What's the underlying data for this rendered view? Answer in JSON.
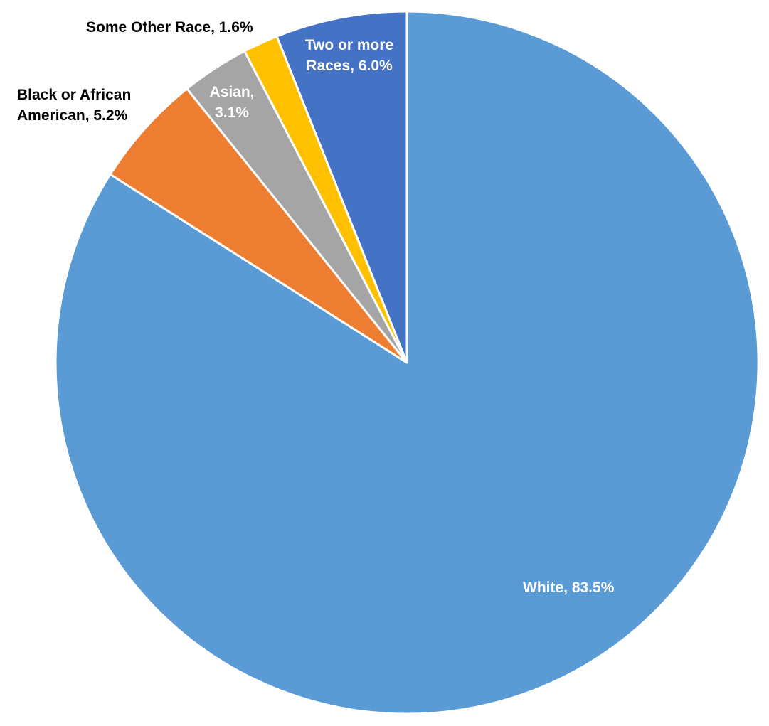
{
  "chart_data": {
    "type": "pie",
    "categories": [
      "White",
      "Black or African American",
      "Asian",
      "Some Other Race",
      "Two or more Races"
    ],
    "values": [
      83.5,
      5.2,
      3.1,
      1.6,
      6.0
    ],
    "value_labels": [
      "White, 83.5%",
      "Black or African American, 5.2%",
      "Asian, 3.1%",
      "Some Other Race, 1.6%",
      "Two or more Races, 6.0%"
    ],
    "colors": [
      "#5b9bd5",
      "#ed7d31",
      "#a5a5a5",
      "#ffc000",
      "#4472c4"
    ]
  }
}
